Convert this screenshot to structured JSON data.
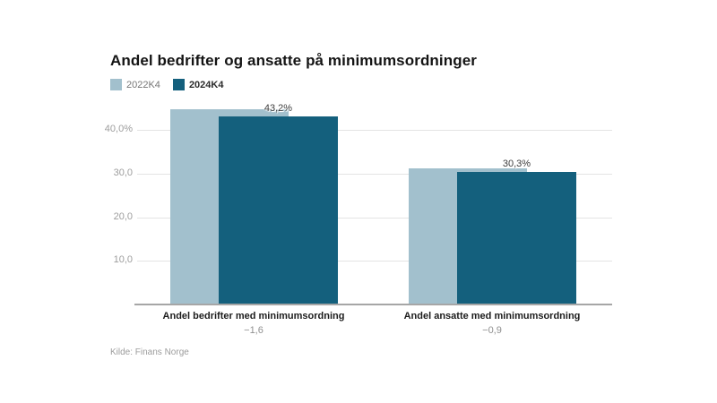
{
  "chart": {
    "title": "Andel bedrifter og ansatte på minimumsordninger",
    "source": "Kilde: Finans Norge",
    "colors": {
      "series_2022": "#a2c0cd",
      "series_2024": "#14607d",
      "gridline": "#e4e4e4",
      "baseline": "#a6a6a6",
      "tick_text": "#9d9d9d"
    }
  },
  "chart_data": {
    "type": "bar",
    "style": "overlapping-columns",
    "title": "Andel bedrifter og ansatte på minimumsordninger",
    "categories": [
      "Andel bedrifter med minimumsordning",
      "Andel ansatte med minimumsordning"
    ],
    "series": [
      {
        "name": "2022K4",
        "color": "#a2c0cd",
        "values": [
          44.8,
          31.2
        ]
      },
      {
        "name": "2024K4",
        "color": "#14607d",
        "values": [
          43.2,
          30.3
        ]
      }
    ],
    "bar_labels": [
      "43,2%",
      "30,3%"
    ],
    "diff_labels": [
      "−1,6",
      "−0,9"
    ],
    "y_ticks": [
      {
        "value": 10,
        "label": "10,0"
      },
      {
        "value": 20,
        "label": "20,0"
      },
      {
        "value": 30,
        "label": "30,0"
      },
      {
        "value": 40,
        "label": "40,0%"
      }
    ],
    "ylim": [
      0,
      46
    ],
    "grid": true,
    "legend_position": "top-left",
    "xlabel": "",
    "ylabel": ""
  }
}
